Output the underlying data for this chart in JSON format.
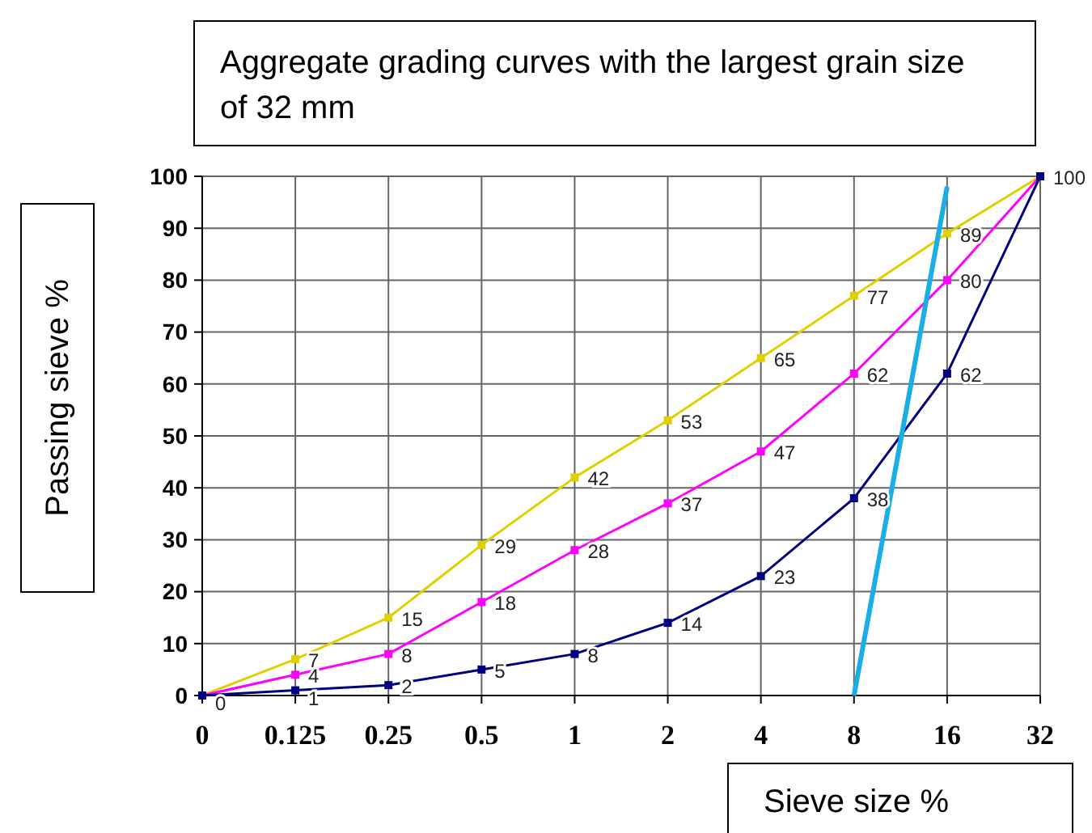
{
  "chart_data": {
    "type": "line",
    "title": "Aggregate grading curves with the largest grain size of 32 mm",
    "xlabel": "Sieve size %",
    "ylabel": "Passing sieve %",
    "categories": [
      "0",
      "0.125",
      "0.25",
      "0.5",
      "1",
      "2",
      "4",
      "8",
      "16",
      "32"
    ],
    "ylim": [
      0,
      100
    ],
    "yticks": [
      0,
      10,
      20,
      30,
      40,
      50,
      60,
      70,
      80,
      90,
      100
    ],
    "grid": true,
    "marker": "square",
    "series": [
      {
        "color": "#e0d000",
        "values": [
          0,
          7,
          15,
          29,
          42,
          53,
          65,
          77,
          89,
          100
        ],
        "value_labels": [
          null,
          "7",
          "15",
          "29",
          "42",
          "53",
          "65",
          "77",
          "89",
          "100"
        ]
      },
      {
        "color": "#ff00ff",
        "values": [
          0,
          4,
          8,
          18,
          28,
          37,
          47,
          62,
          80,
          100
        ],
        "value_labels": [
          null,
          "4",
          "8",
          "18",
          "28",
          "37",
          "47",
          "62",
          "80",
          null
        ]
      },
      {
        "color": "#000080",
        "values": [
          0,
          1,
          2,
          5,
          8,
          14,
          23,
          38,
          62,
          100
        ],
        "value_labels": [
          "0",
          "1",
          "2",
          "5",
          "8",
          "14",
          "23",
          "38",
          "62",
          null
        ]
      },
      {
        "color": "#1aaee6",
        "marker": "none",
        "values": [
          null,
          null,
          null,
          null,
          null,
          null,
          null,
          0,
          98,
          null
        ]
      }
    ]
  }
}
